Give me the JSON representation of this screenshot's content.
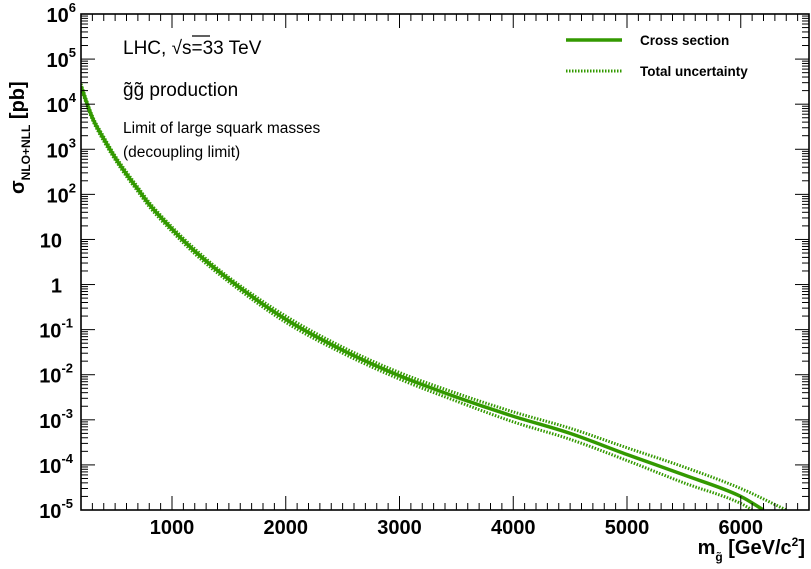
{
  "chart_data": {
    "type": "line",
    "x_scale": "linear",
    "y_scale": "log",
    "xlim": [
      200,
      6600
    ],
    "ylim": [
      1e-05,
      1000000.0
    ],
    "x_ticks": [
      1000,
      2000,
      3000,
      4000,
      5000,
      6000
    ],
    "x_tick_labels": [
      "1000",
      "2000",
      "3000",
      "4000",
      "5000",
      "6000"
    ],
    "y_ticks": [
      {
        "value": 1e-05,
        "base": "10",
        "exp": "-5"
      },
      {
        "value": 0.0001,
        "base": "10",
        "exp": "-4"
      },
      {
        "value": 0.001,
        "base": "10",
        "exp": "-3"
      },
      {
        "value": 0.01,
        "base": "10",
        "exp": "-2"
      },
      {
        "value": 0.1,
        "base": "10",
        "exp": "-1"
      },
      {
        "value": 1,
        "base": "1",
        "exp": ""
      },
      {
        "value": 10,
        "base": "10",
        "exp": ""
      },
      {
        "value": 100,
        "base": "10",
        "exp": "2"
      },
      {
        "value": 1000,
        "base": "10",
        "exp": "3"
      },
      {
        "value": 10000,
        "base": "10",
        "exp": "4"
      },
      {
        "value": 100000,
        "base": "10",
        "exp": "5"
      },
      {
        "value": 1000000,
        "base": "10",
        "exp": "6"
      }
    ],
    "xlabel": {
      "prefix": "m",
      "subscript": "g̃",
      "suffix": " [GeV/c",
      "sup": "2",
      "end": "]"
    },
    "ylabel": {
      "prefix": "σ",
      "subscript": "NLO+NLL",
      "suffix": " [pb]"
    },
    "annotations": {
      "line1": "LHC,  √s=33 TeV",
      "line2": "g̃g̃ production",
      "line3": "Limit of large squark masses",
      "line4": "(decoupling limit)"
    },
    "legend": {
      "position": "top-right",
      "entries": [
        "Cross section",
        "Total uncertainty"
      ]
    },
    "series": [
      {
        "name": "Cross section",
        "style": "solid",
        "color": "#339900",
        "x": [
          200,
          300,
          400,
          500,
          600,
          700,
          800,
          1000,
          1200,
          1500,
          2000,
          2500,
          3000,
          3500,
          4000,
          4500,
          5000,
          5500,
          6000,
          6200
        ],
        "y": [
          25000,
          5000,
          1700,
          650,
          280,
          130,
          60,
          17,
          5.5,
          1.3,
          0.17,
          0.035,
          0.0095,
          0.0032,
          0.0012,
          0.0005,
          0.00017,
          6e-05,
          2e-05,
          1e-05
        ]
      },
      {
        "name": "Total uncertainty",
        "style": "dotted",
        "color": "#339900",
        "bands": [
          {
            "x": [
              200,
              300,
              400,
              500,
              600,
              700,
              800,
              1000,
              1200,
              1500,
              2000,
              2500,
              3000,
              3500,
              4000,
              4500,
              5000,
              5500,
              6000,
              6400
            ],
            "y": [
              28000,
              5500,
              1900,
              720,
              315,
              145,
              67,
              19,
              6.2,
              1.45,
              0.2,
              0.041,
              0.0112,
              0.0039,
              0.0015,
              0.00065,
              0.00024,
              9e-05,
              3e-05,
              1e-05
            ]
          },
          {
            "x": [
              200,
              300,
              400,
              500,
              600,
              700,
              800,
              1000,
              1200,
              1500,
              2000,
              2500,
              3000,
              3500,
              4000,
              4500,
              5000,
              5500,
              6000,
              6100
            ],
            "y": [
              22000,
              4500,
              1500,
              580,
              248,
              115,
              53,
              15,
              4.8,
              1.14,
              0.145,
              0.03,
              0.008,
              0.0026,
              0.0009,
              0.00037,
              0.000125,
              4e-05,
              1.4e-05,
              1e-05
            ]
          }
        ]
      }
    ],
    "grid": false
  }
}
